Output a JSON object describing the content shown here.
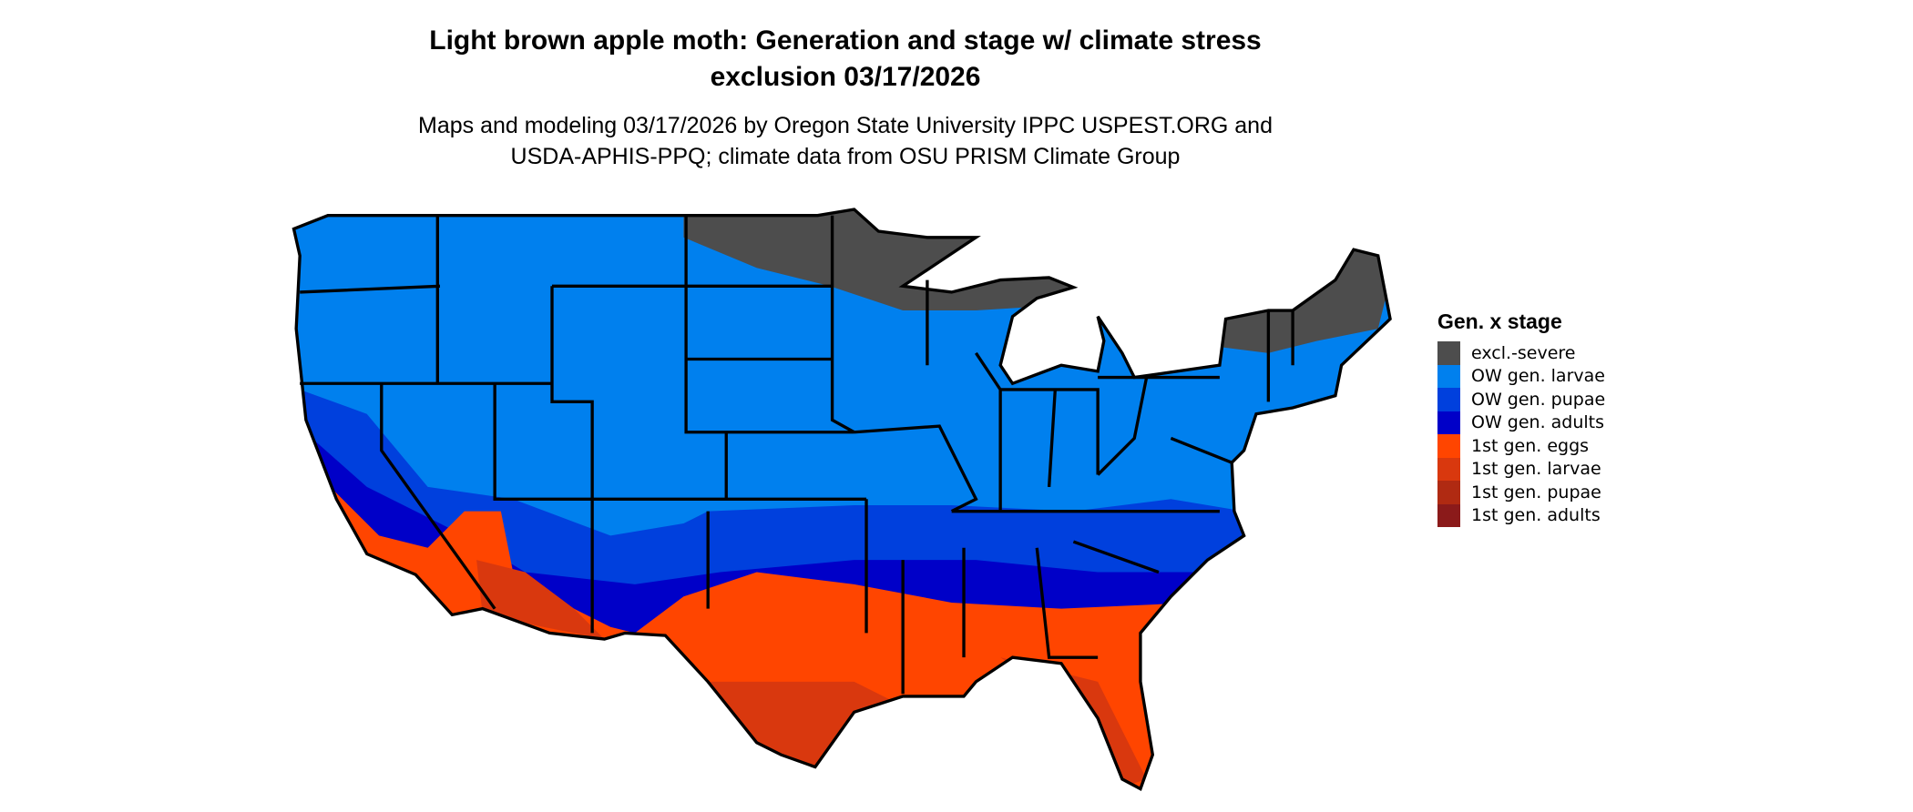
{
  "title_line1": "Light brown apple moth: Generation and stage w/ climate stress",
  "title_line2": "exclusion 03/17/2026",
  "subtitle_line1": "Maps and modeling 03/17/2026 by Oregon State University IPPC USPEST.ORG and",
  "subtitle_line2": "USDA-APHIS-PPQ; climate data from OSU PRISM Climate Group",
  "legend": {
    "title": "Gen. x stage",
    "items": [
      {
        "label": "excl.-severe",
        "color": "#4d4d4d"
      },
      {
        "label": "OW gen. larvae",
        "color": "#0080ee"
      },
      {
        "label": "OW gen. pupae",
        "color": "#0040dd"
      },
      {
        "label": "OW gen. adults",
        "color": "#0000c8"
      },
      {
        "label": "1st gen. eggs",
        "color": "#ff4500"
      },
      {
        "label": "1st gen. larvae",
        "color": "#d9380e"
      },
      {
        "label": "1st gen. pupae",
        "color": "#b02a12"
      },
      {
        "label": "1st gen. adults",
        "color": "#8b1a1a"
      }
    ]
  }
}
